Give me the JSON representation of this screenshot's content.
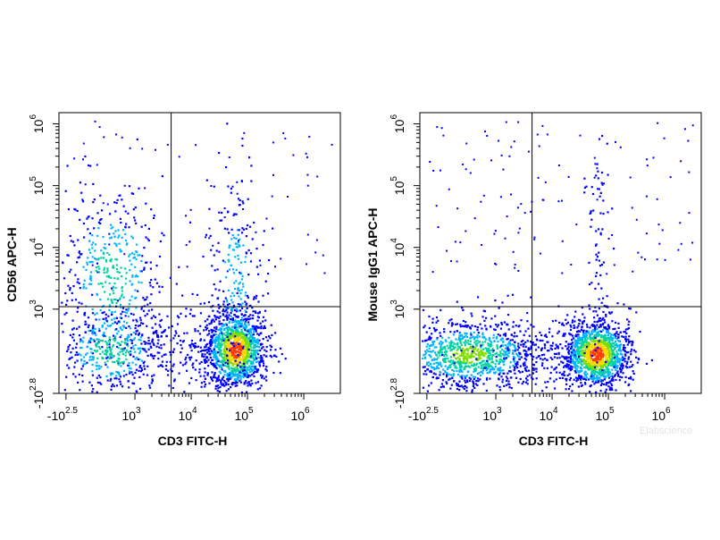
{
  "watermark": "Elabscience",
  "density_colors": [
    "#0000ff",
    "#00b4ff",
    "#00d2a0",
    "#7ede00",
    "#ffd800",
    "#ff3c00"
  ],
  "chart_data": [
    {
      "type": "scatter",
      "subtype": "flow-cytometry-density-dot-plot",
      "xlabel": "CD3 FITC-H",
      "ylabel": "CD56 APC-H",
      "x_scale": "biexponential",
      "y_scale": "biexponential",
      "x_ticks": [
        {
          "base": "-10",
          "exp": "2.5",
          "value": -316
        },
        {
          "base": "10",
          "exp": "3",
          "value": 1000
        },
        {
          "base": "10",
          "exp": "4",
          "value": 10000
        },
        {
          "base": "10",
          "exp": "5",
          "value": 100000
        },
        {
          "base": "10",
          "exp": "6",
          "value": 1000000
        }
      ],
      "y_ticks": [
        {
          "base": "-10",
          "exp": "2.8",
          "value": -631
        },
        {
          "base": "10",
          "exp": "3",
          "value": 1000
        },
        {
          "base": "10",
          "exp": "4",
          "value": 10000
        },
        {
          "base": "10",
          "exp": "5",
          "value": 100000
        },
        {
          "base": "10",
          "exp": "6",
          "value": 1000000
        }
      ],
      "gates": {
        "x_threshold": 4400,
        "y_threshold": 1100
      },
      "populations": [
        {
          "x": 520,
          "y": 3500,
          "spread_x": 0.1,
          "spread_y": 0.17,
          "weight": 0.18,
          "peak": 0.45
        },
        {
          "x": 520,
          "y": 250,
          "spread_x": 0.1,
          "spread_y": 0.08,
          "weight": 0.16,
          "peak": 0.5
        },
        {
          "x": 60000,
          "y": 250,
          "spread_x": 0.055,
          "spread_y": 0.07,
          "weight": 0.5,
          "peak": 1.0
        },
        {
          "x": 60000,
          "y": 3000,
          "spread_x": 0.05,
          "spread_y": 0.22,
          "weight": 0.09,
          "peak": 0.3
        },
        {
          "x": 6000,
          "y": 250,
          "spread_x": 0.12,
          "spread_y": 0.08,
          "weight": 0.07,
          "peak": 0.12
        }
      ]
    },
    {
      "type": "scatter",
      "subtype": "flow-cytometry-density-dot-plot",
      "xlabel": "CD3 FITC-H",
      "ylabel": "Mouse IgG1 APC-H",
      "x_scale": "biexponential",
      "y_scale": "biexponential",
      "x_ticks": [
        {
          "base": "-10",
          "exp": "2.5",
          "value": -316
        },
        {
          "base": "10",
          "exp": "3",
          "value": 1000
        },
        {
          "base": "10",
          "exp": "4",
          "value": 10000
        },
        {
          "base": "10",
          "exp": "5",
          "value": 100000
        },
        {
          "base": "10",
          "exp": "6",
          "value": 1000000
        }
      ],
      "y_ticks": [
        {
          "base": "-10",
          "exp": "2.8",
          "value": -631
        },
        {
          "base": "10",
          "exp": "3",
          "value": 1000
        },
        {
          "base": "10",
          "exp": "4",
          "value": 10000
        },
        {
          "base": "10",
          "exp": "5",
          "value": 100000
        },
        {
          "base": "10",
          "exp": "6",
          "value": 1000000
        }
      ],
      "gates": {
        "x_threshold": 4400,
        "y_threshold": 1100
      },
      "populations": [
        {
          "x": 480,
          "y": 160,
          "spread_x": 0.13,
          "spread_y": 0.06,
          "weight": 0.42,
          "peak": 0.65
        },
        {
          "x": 60000,
          "y": 170,
          "spread_x": 0.06,
          "spread_y": 0.06,
          "weight": 0.5,
          "peak": 1.0
        },
        {
          "x": 5000,
          "y": 170,
          "spread_x": 0.12,
          "spread_y": 0.06,
          "weight": 0.05,
          "peak": 0.12
        },
        {
          "x": 60000,
          "y": 6000,
          "spread_x": 0.025,
          "spread_y": 0.2,
          "weight": 0.03,
          "peak": 0.1
        }
      ]
    }
  ]
}
